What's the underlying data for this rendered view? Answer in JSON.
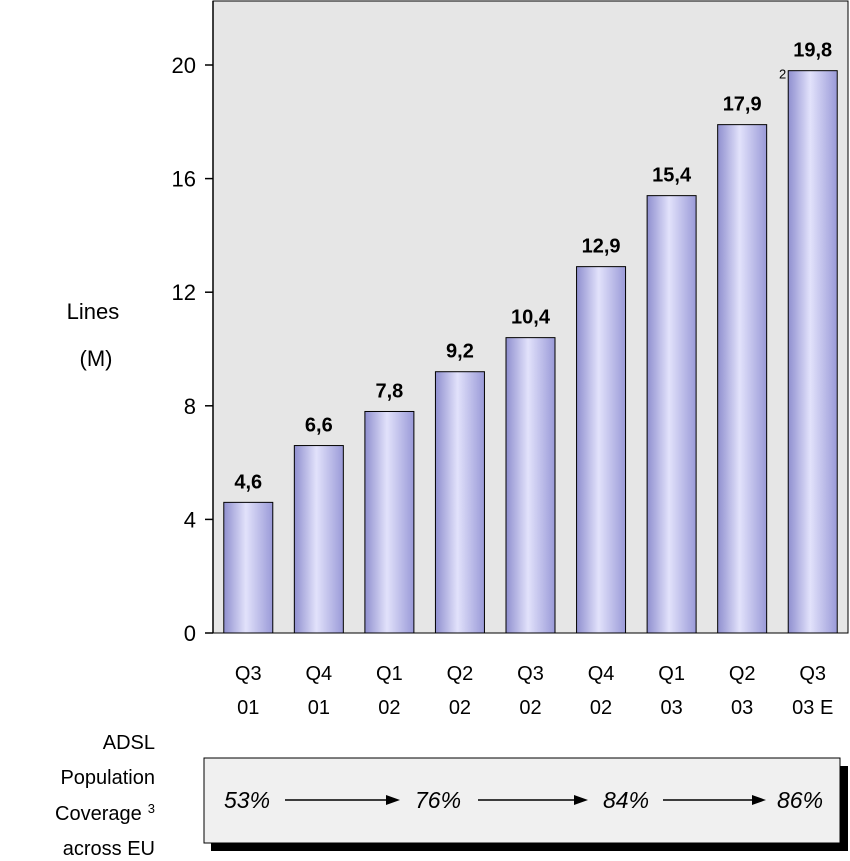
{
  "chart_data": {
    "type": "bar",
    "categories": [
      "Q3\n01",
      "Q4\n01",
      "Q1\n02",
      "Q2\n02",
      "Q3\n02",
      "Q4\n02",
      "Q1\n03",
      "Q2\n03",
      "Q3\n03 E"
    ],
    "values": [
      4.6,
      6.6,
      7.8,
      9.2,
      10.4,
      12.9,
      15.4,
      17.9,
      19.8
    ],
    "value_labels": [
      "4,6",
      "6,6",
      "7,8",
      "9,2",
      "10,4",
      "12,9",
      "15,4",
      "17,9",
      "19,8"
    ],
    "value_footnote": "2",
    "ylabel_lines": [
      "Lines",
      "(M)"
    ],
    "yticks": [
      0,
      4,
      8,
      12,
      16,
      20
    ],
    "ylim": [
      0,
      20.8
    ],
    "grid": false,
    "colors": {
      "bar_light": "#e2e2fb",
      "bar_mid": "#b6b6ec",
      "bar_dark": "#8f8fcf",
      "plot_bg": "#e6e6e6"
    }
  },
  "coverage": {
    "label_lines": [
      "ADSL",
      "Population",
      "Coverage",
      "across EU"
    ],
    "label_footnote": "3",
    "values": [
      "53%",
      "76%",
      "84%",
      "86%"
    ]
  }
}
